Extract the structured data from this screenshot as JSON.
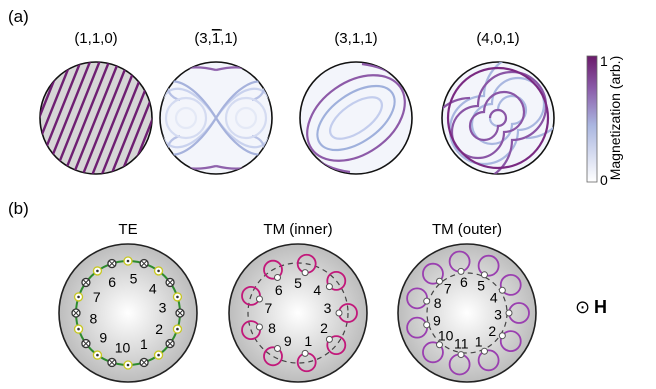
{
  "panel_a": {
    "label": "(a)",
    "modes": [
      {
        "label_pre": "(1,1,0)",
        "label_bar": "",
        "label_post": ""
      },
      {
        "label_pre": "(3,",
        "label_bar": "1",
        "label_post": ",1)"
      },
      {
        "label_pre": "(3,1,1)",
        "label_bar": "",
        "label_post": ""
      },
      {
        "label_pre": "(4,0,1)",
        "label_bar": "",
        "label_post": ""
      }
    ],
    "colorbar": {
      "title": "Magnetization (arb.)",
      "max_label": "1",
      "min_label": "0",
      "color_high": "#7a1e78",
      "color_mid": "#9aa8d8",
      "color_low": "#ffffff"
    }
  },
  "panel_b": {
    "label": "(b)",
    "diagrams": [
      {
        "title": "TE",
        "numbers": [
          "1",
          "2",
          "3",
          "4",
          "5",
          "6",
          "7",
          "8",
          "9",
          "10"
        ],
        "accent": "#2e8b2e"
      },
      {
        "title": "TM (inner)",
        "numbers": [
          "1",
          "2",
          "3",
          "4",
          "5",
          "6",
          "7",
          "8",
          "9"
        ],
        "accent": "#c2187a"
      },
      {
        "title": "TM (outer)",
        "numbers": [
          "1",
          "2",
          "3",
          "4",
          "5",
          "6",
          "7",
          "8",
          "9",
          "10",
          "11"
        ],
        "accent": "#9a3fb0"
      }
    ],
    "h_field": {
      "symbol": "⊙",
      "label": "H"
    }
  }
}
